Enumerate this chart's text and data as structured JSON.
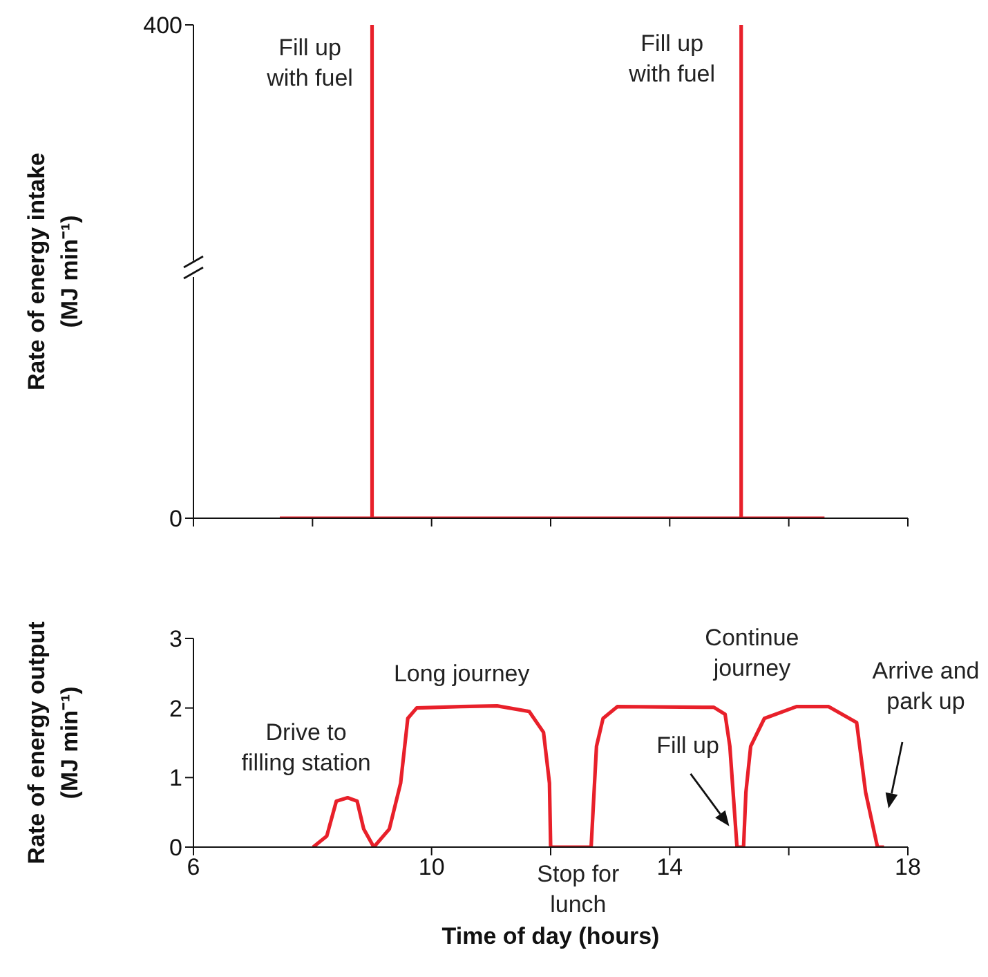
{
  "chart_data": [
    {
      "type": "line",
      "ylabel": "Rate of energy intake\n(MJ min⁻¹)",
      "xlim": [
        6,
        18
      ],
      "xticks": [
        6,
        8,
        10,
        12,
        14,
        16,
        18
      ],
      "ylim": [
        0,
        400
      ],
      "yticks": [
        0,
        400
      ],
      "tick_labels": "y",
      "series": [
        {
          "color": "#e8202a",
          "x": [
            7.45,
            9.0,
            9.0,
            9.0,
            15.2,
            15.2,
            15.2,
            16.6
          ],
          "values": [
            0,
            0,
            400,
            0,
            0,
            400,
            0,
            0
          ]
        }
      ],
      "annotations": [
        {
          "text": "Fill up with fuel",
          "x": 9.0,
          "y": 400
        },
        {
          "text": "Fill up with fuel",
          "x": 15.2,
          "y": 400
        }
      ]
    },
    {
      "type": "line",
      "xlabel": "Time of day (hours)",
      "ylabel": "Rate of energy output\n(MJ min⁻¹)",
      "xlim": [
        6,
        18
      ],
      "xticks": [
        6,
        10,
        {
          "value": 12,
          "label": null
        },
        14,
        {
          "value": 16,
          "label": null
        },
        18
      ],
      "ylim": [
        0,
        3
      ],
      "yticks": [
        0,
        1,
        2,
        3
      ],
      "series": [
        {
          "color": "#e8202a",
          "x": [
            8.01,
            8.24,
            8.4,
            8.59,
            8.75,
            8.86,
            9.03,
            9.29,
            9.48,
            9.6,
            9.75,
            10.49,
            11.1,
            11.64,
            11.88,
            11.98,
            12.0,
            12.68,
            12.77,
            12.88,
            13.12,
            14.74,
            14.93,
            15.01,
            15.13,
            15.24,
            15.28,
            15.36,
            15.59,
            16.13,
            16.67,
            17.14,
            17.29,
            17.49,
            17.6
          ],
          "values": [
            0,
            0.16,
            0.66,
            0.71,
            0.66,
            0.26,
            0,
            0.26,
            0.92,
            1.85,
            2.0,
            2.02,
            2.03,
            1.95,
            1.65,
            0.92,
            0,
            0,
            1.45,
            1.85,
            2.02,
            2.01,
            1.91,
            1.45,
            0,
            0,
            0.79,
            1.45,
            1.85,
            2.02,
            2.02,
            1.79,
            0.79,
            0,
            0
          ]
        }
      ],
      "annotations": [
        {
          "text": "Drive to filling station",
          "x": 8.59,
          "y": 0.71
        },
        {
          "text": "Long journey",
          "x": 10.9,
          "y": 2.03
        },
        {
          "text": "Stop for lunch",
          "x": 12.3,
          "y": 0
        },
        {
          "text": "Continue journey",
          "x": 14.5,
          "y": 2.01
        },
        {
          "text": "Fill up",
          "x": 15.0,
          "y": 0.3
        },
        "Arrive and park up"
      ]
    }
  ]
}
